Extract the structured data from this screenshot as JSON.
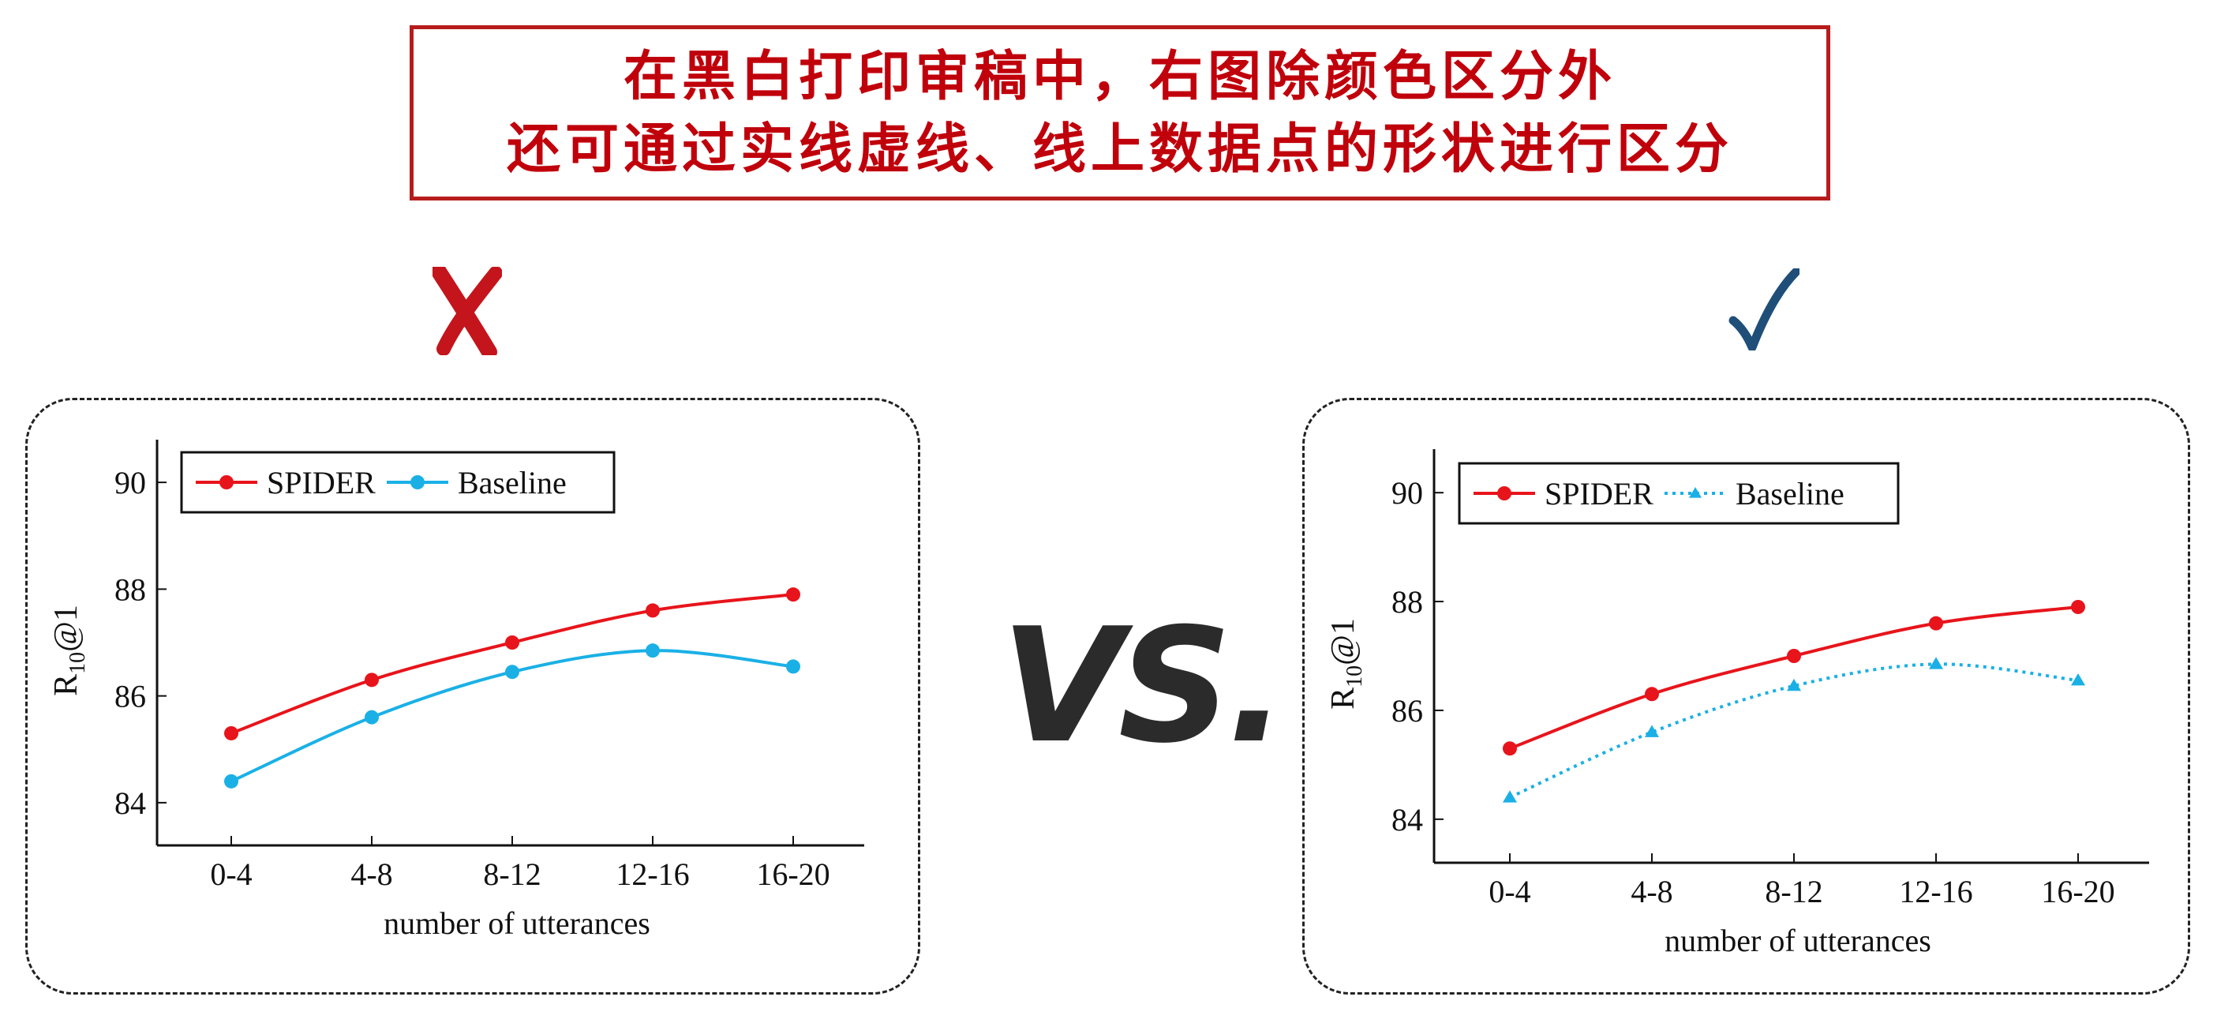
{
  "banner": {
    "line1": "在黑白打印审稿中，右图除颜色区分外",
    "line2": "还可通过实线虚线、线上数据点的形状进行区分"
  },
  "verdicts": {
    "left_mark": "✗",
    "right_mark": "✓"
  },
  "vs_label": "VS.",
  "colors": {
    "banner_red": "#c0000b",
    "cross_red": "#c4151c",
    "check_blue": "#1f4e79",
    "spider_red": "#e8141b",
    "baseline_cyan": "#1ab0e6"
  },
  "chart_data": [
    {
      "type": "line",
      "title": "",
      "xlabel": "number of utterances",
      "ylabel": "R10@1",
      "ylabel_main": "R",
      "ylabel_sub": "10",
      "ylabel_tail": "@1",
      "categories": [
        "0-4",
        "4-8",
        "8-12",
        "12-16",
        "16-20"
      ],
      "ylim": [
        83.2,
        90.8
      ],
      "yticks": [
        "84",
        "86",
        "88",
        "90"
      ],
      "legend_position": "top-left",
      "series": [
        {
          "name": "SPIDER",
          "values": [
            85.3,
            86.3,
            87.0,
            87.6,
            87.9
          ],
          "line": "solid",
          "marker": "circle"
        },
        {
          "name": "Baseline",
          "values": [
            84.4,
            85.6,
            86.45,
            86.85,
            86.55
          ],
          "line": "solid",
          "marker": "circle"
        }
      ]
    },
    {
      "type": "line",
      "title": "",
      "xlabel": "number of utterances",
      "ylabel": "R10@1",
      "ylabel_main": "R",
      "ylabel_sub": "10",
      "ylabel_tail": "@1",
      "categories": [
        "0-4",
        "4-8",
        "8-12",
        "12-16",
        "16-20"
      ],
      "ylim": [
        83.2,
        90.8
      ],
      "yticks": [
        "84",
        "86",
        "88",
        "90"
      ],
      "legend_position": "top-left",
      "series": [
        {
          "name": "SPIDER",
          "values": [
            85.3,
            86.3,
            87.0,
            87.6,
            87.9
          ],
          "line": "solid",
          "marker": "circle"
        },
        {
          "name": "Baseline",
          "values": [
            84.4,
            85.6,
            86.45,
            86.85,
            86.55
          ],
          "line": "dotted",
          "marker": "triangle"
        }
      ]
    }
  ]
}
